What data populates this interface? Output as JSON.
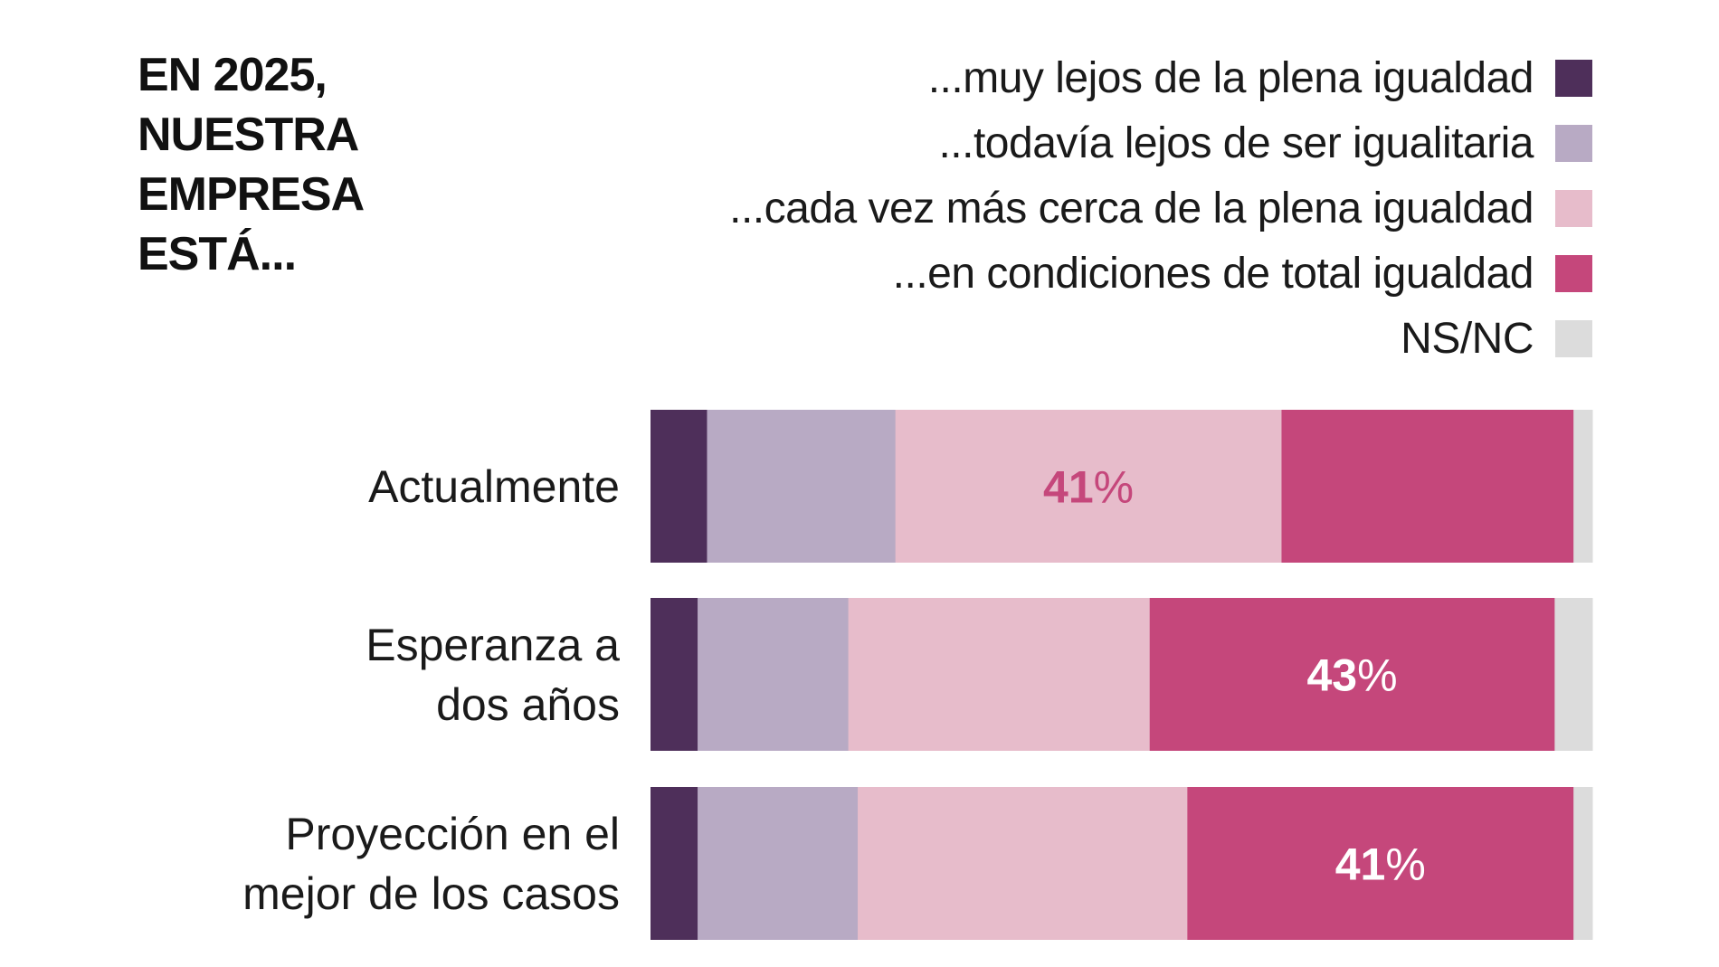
{
  "chart_data": {
    "type": "bar",
    "orientation": "horizontal",
    "stacked": true,
    "normalized": true,
    "title": "EN 2025, NUESTRA EMPRESA ESTÁ...",
    "title_lines": [
      "EN 2025,",
      "NUESTRA",
      "EMPRESA",
      "ESTÁ..."
    ],
    "categories": [
      "Actualmente",
      "Esperanza a dos años",
      "Proyección en el mejor de los casos"
    ],
    "category_lines": [
      [
        "Actualmente"
      ],
      [
        "Esperanza a",
        "dos años"
      ],
      [
        "Proyección en el",
        "mejor de los casos"
      ]
    ],
    "series": [
      {
        "name": "...muy lejos de la plena igualdad",
        "color": "#4e2f5a",
        "values": [
          6,
          5,
          5
        ]
      },
      {
        "name": "...todavía lejos de ser igualitaria",
        "color": "#b8aac4",
        "values": [
          20,
          16,
          17
        ]
      },
      {
        "name": "...cada vez más cerca de la plena igualdad",
        "color": "#e7bccb",
        "values": [
          41,
          32,
          35
        ]
      },
      {
        "name": "...en condiciones de total igualdad",
        "color": "#c5477b",
        "values": [
          31,
          43,
          41
        ]
      },
      {
        "name": "NS/NC",
        "color": "#dcdcdc",
        "values": [
          2,
          4,
          2
        ]
      }
    ],
    "data_labels": [
      {
        "category": 0,
        "series": 2,
        "number": "41",
        "unit": "%",
        "color": "#c5477b"
      },
      {
        "category": 1,
        "series": 3,
        "number": "43",
        "unit": "%",
        "color": "#ffffff"
      },
      {
        "category": 2,
        "series": 3,
        "number": "41",
        "unit": "%",
        "color": "#ffffff"
      }
    ],
    "xlim": [
      0,
      100
    ],
    "grid": false,
    "axes_visible": false,
    "legend_position": "top-right"
  }
}
